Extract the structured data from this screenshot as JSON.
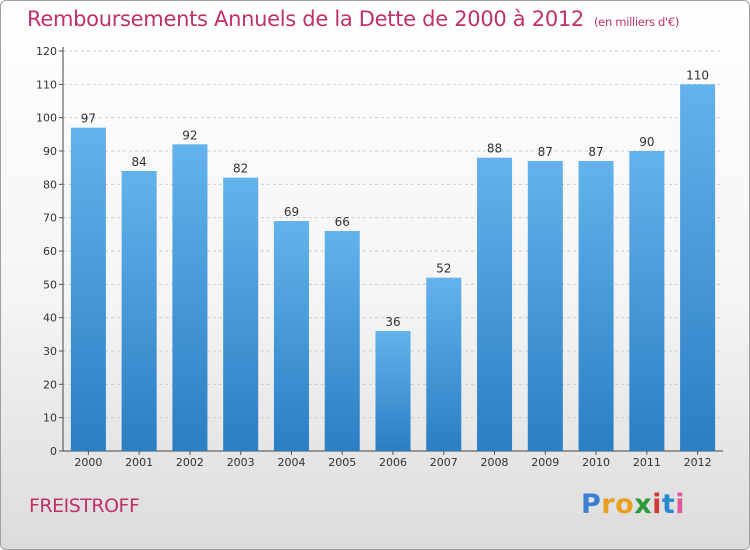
{
  "title": "Remboursements Annuels de la Dette de 2000 à 2012",
  "title_unit": "(en milliers d'€)",
  "commune": "FREISTROFF",
  "logo": {
    "letters": [
      "P",
      "r",
      "o",
      "x",
      "i",
      "t",
      "i"
    ],
    "colors": [
      "#3b7fd1",
      "#e8a020",
      "#e8a020",
      "#2a9a3a",
      "#d33b3b",
      "#2a8ad0",
      "#e05a9a"
    ]
  },
  "colors": {
    "title": "#c0306b",
    "bar_top": "#63b2ec",
    "bar_bottom": "#2a7ec2",
    "grid": "#cccccc"
  },
  "chart_data": {
    "type": "bar",
    "categories": [
      "2000",
      "2001",
      "2002",
      "2003",
      "2004",
      "2005",
      "2006",
      "2007",
      "2008",
      "2009",
      "2010",
      "2011",
      "2012"
    ],
    "values": [
      97,
      84,
      92,
      82,
      69,
      66,
      36,
      52,
      88,
      87,
      87,
      90,
      110
    ],
    "data_labels": [
      "97",
      "84",
      "92",
      "82",
      "69",
      "66",
      "36",
      "52",
      "88",
      "87",
      "87",
      "90",
      "110"
    ],
    "yticks": [
      0,
      10,
      20,
      30,
      40,
      50,
      60,
      70,
      80,
      90,
      100,
      110,
      120
    ],
    "ylim": [
      0,
      120
    ],
    "grid": "horizontal dashed",
    "legend": "none"
  }
}
